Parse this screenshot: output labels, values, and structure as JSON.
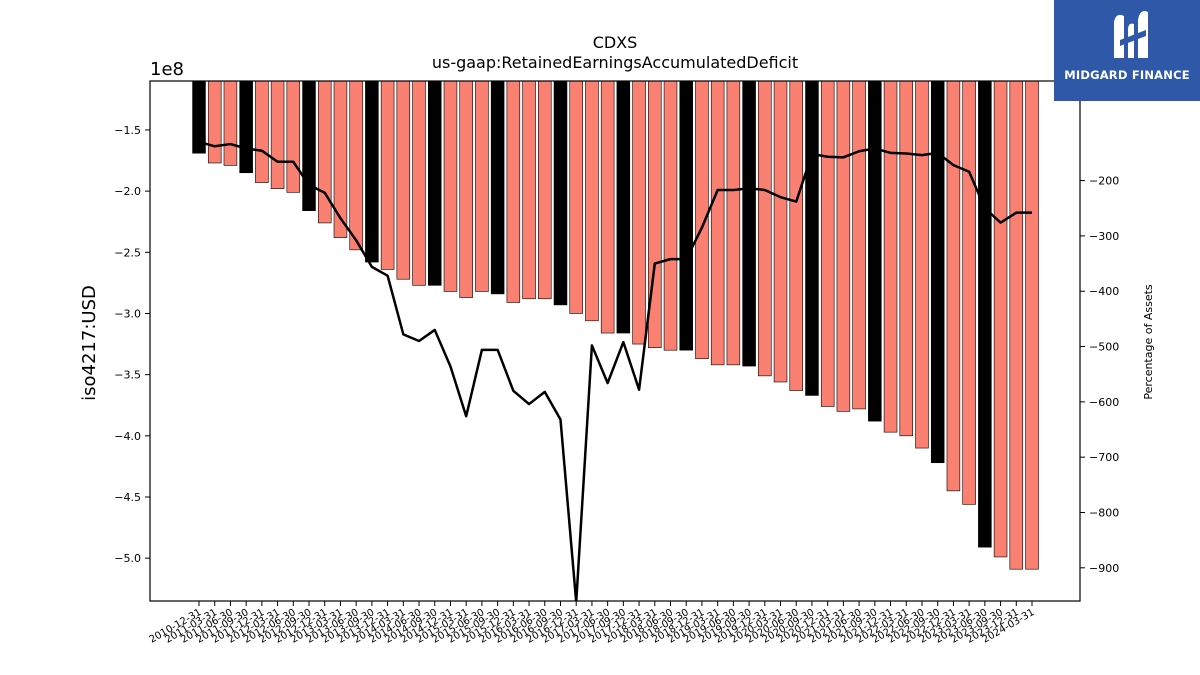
{
  "chart_data": {
    "type": "bar",
    "title": "CDXS",
    "subtitle": "us-gaap:RetainedEarningsAccumulatedDeficit",
    "ylabel": "iso4217:USD",
    "y_offset_label": "1e8",
    "y2label": "Percentage of Assets",
    "ylim": [
      -5.35,
      -1.1
    ],
    "y2lim": [
      -960,
      -20
    ],
    "yticks": [
      -1.5,
      -2.0,
      -2.5,
      -3.0,
      -3.5,
      -4.0,
      -4.5,
      -5.0
    ],
    "y2ticks": [
      -200,
      -300,
      -400,
      -500,
      -600,
      -700,
      -800,
      -900
    ],
    "grid": false,
    "categories": [
      "2010-12-31",
      "2011-03-31",
      "2011-06-30",
      "2011-09-30",
      "2011-12-31",
      "2012-03-31",
      "2012-06-30",
      "2012-09-30",
      "2012-12-31",
      "2013-03-31",
      "2013-06-30",
      "2013-09-30",
      "2013-12-31",
      "2014-03-31",
      "2014-06-30",
      "2014-09-30",
      "2014-12-31",
      "2015-03-31",
      "2015-06-30",
      "2015-09-30",
      "2015-12-31",
      "2016-03-31",
      "2016-06-30",
      "2016-09-30",
      "2016-12-31",
      "2017-03-31",
      "2017-06-30",
      "2017-09-30",
      "2017-12-31",
      "2018-03-31",
      "2018-06-30",
      "2018-09-30",
      "2018-12-31",
      "2019-03-31",
      "2019-06-30",
      "2019-09-30",
      "2019-12-31",
      "2020-03-31",
      "2020-06-30",
      "2020-09-30",
      "2020-12-31",
      "2021-03-31",
      "2021-06-30",
      "2021-09-30",
      "2021-12-31",
      "2022-03-31",
      "2022-06-30",
      "2022-09-30",
      "2022-12-31",
      "2023-03-31",
      "2023-06-30",
      "2023-09-30",
      "2023-12-31",
      "2024-03-31"
    ],
    "tick_labels": [
      "2010-12-31",
      "2011-03-31",
      "2011-06-30",
      "2011-09-30",
      "2011-12-31",
      "2012-03-31",
      "2012-06-30",
      "2012-09-30",
      "2012-12-31",
      "2013-03-31",
      "2013-06-30",
      "2013-09-30",
      "2013-12-31",
      "2014-03-31",
      "2014-06-30",
      "2014-09-30",
      "2014-12-31",
      "2015-03-31",
      "2015-06-30",
      "2015-09-30",
      "2015-12-31",
      "2016-03-31",
      "2016-06-30",
      "2016-09-30",
      "2016-12-31",
      "2017-03-31",
      "2017-06-30",
      "2017-09-30",
      "2017-12-31",
      "2018-03-31",
      "2018-06-30",
      "2018-09-30",
      "2018-12-31",
      "2019-03-31",
      "2019-06-30",
      "2019-09-30",
      "2019-12-31",
      "2020-03-31",
      "2020-06-30",
      "2020-09-30",
      "2020-12-31",
      "2021-03-31",
      "2021-06-30",
      "2021-09-30",
      "2021-12-31",
      "2022-03-31",
      "2022-06-30",
      "2022-09-30",
      "2022-12-31",
      "2023-03-31",
      "2023-06-30",
      "2023-09-30",
      "2023-12-31",
      "2024-03-31"
    ],
    "series": [
      {
        "type": "bar",
        "axis": "left",
        "values": [
          -1.69,
          -1.77,
          -1.79,
          -1.85,
          -1.93,
          -1.98,
          -2.01,
          -2.16,
          -2.26,
          -2.38,
          -2.48,
          -2.58,
          -2.64,
          -2.72,
          -2.77,
          -2.77,
          -2.82,
          -2.87,
          -2.82,
          -2.84,
          -2.91,
          -2.88,
          -2.88,
          -2.93,
          -3.0,
          -3.06,
          -3.16,
          -3.16,
          -3.25,
          -3.28,
          -3.3,
          -3.3,
          -3.37,
          -3.42,
          -3.42,
          -3.43,
          -3.51,
          -3.56,
          -3.63,
          -3.67,
          -3.76,
          -3.8,
          -3.78,
          -3.88,
          -3.97,
          -4.0,
          -4.1,
          -4.22,
          -4.45,
          -4.56,
          -4.91,
          -4.99,
          -5.09,
          -5.09
        ],
        "colors": [
          "#000000",
          "#fa8072",
          "#fa8072",
          "#000000",
          "#fa8072",
          "#fa8072",
          "#fa8072",
          "#000000",
          "#fa8072",
          "#fa8072",
          "#fa8072",
          "#000000",
          "#fa8072",
          "#fa8072",
          "#fa8072",
          "#000000",
          "#fa8072",
          "#fa8072",
          "#fa8072",
          "#000000",
          "#fa8072",
          "#fa8072",
          "#fa8072",
          "#000000",
          "#fa8072",
          "#fa8072",
          "#fa8072",
          "#000000",
          "#fa8072",
          "#fa8072",
          "#fa8072",
          "#000000",
          "#fa8072",
          "#fa8072",
          "#fa8072",
          "#000000",
          "#fa8072",
          "#fa8072",
          "#fa8072",
          "#000000",
          "#fa8072",
          "#fa8072",
          "#fa8072",
          "#000000",
          "#fa8072",
          "#fa8072",
          "#fa8072",
          "#000000",
          "#fa8072",
          "#fa8072",
          "#000000",
          "#fa8072",
          "#fa8072",
          "#fa8072"
        ]
      },
      {
        "type": "line",
        "axis": "right",
        "color": "#000000",
        "values": [
          -130,
          -138,
          -134,
          -142,
          -146,
          -166,
          -166,
          -208,
          -222,
          -268,
          -308,
          -356,
          -372,
          -478,
          -490,
          -470,
          -536,
          -626,
          -506,
          -506,
          -580,
          -604,
          -582,
          -632,
          -962,
          -498,
          -566,
          -492,
          -578,
          -350,
          -342,
          -342,
          -285,
          -217,
          -217,
          -214,
          -217,
          -230,
          -238,
          -152,
          -157,
          -158,
          -147,
          -142,
          -150,
          -151,
          -154,
          -150,
          -172,
          -184,
          -250,
          -276,
          -258,
          -258
        ]
      }
    ],
    "colors": {
      "accent": "#fa8072",
      "highlight": "#000000"
    }
  },
  "logo": {
    "text": "MIDGARD FINANCE",
    "bg": "#2f58a8"
  }
}
